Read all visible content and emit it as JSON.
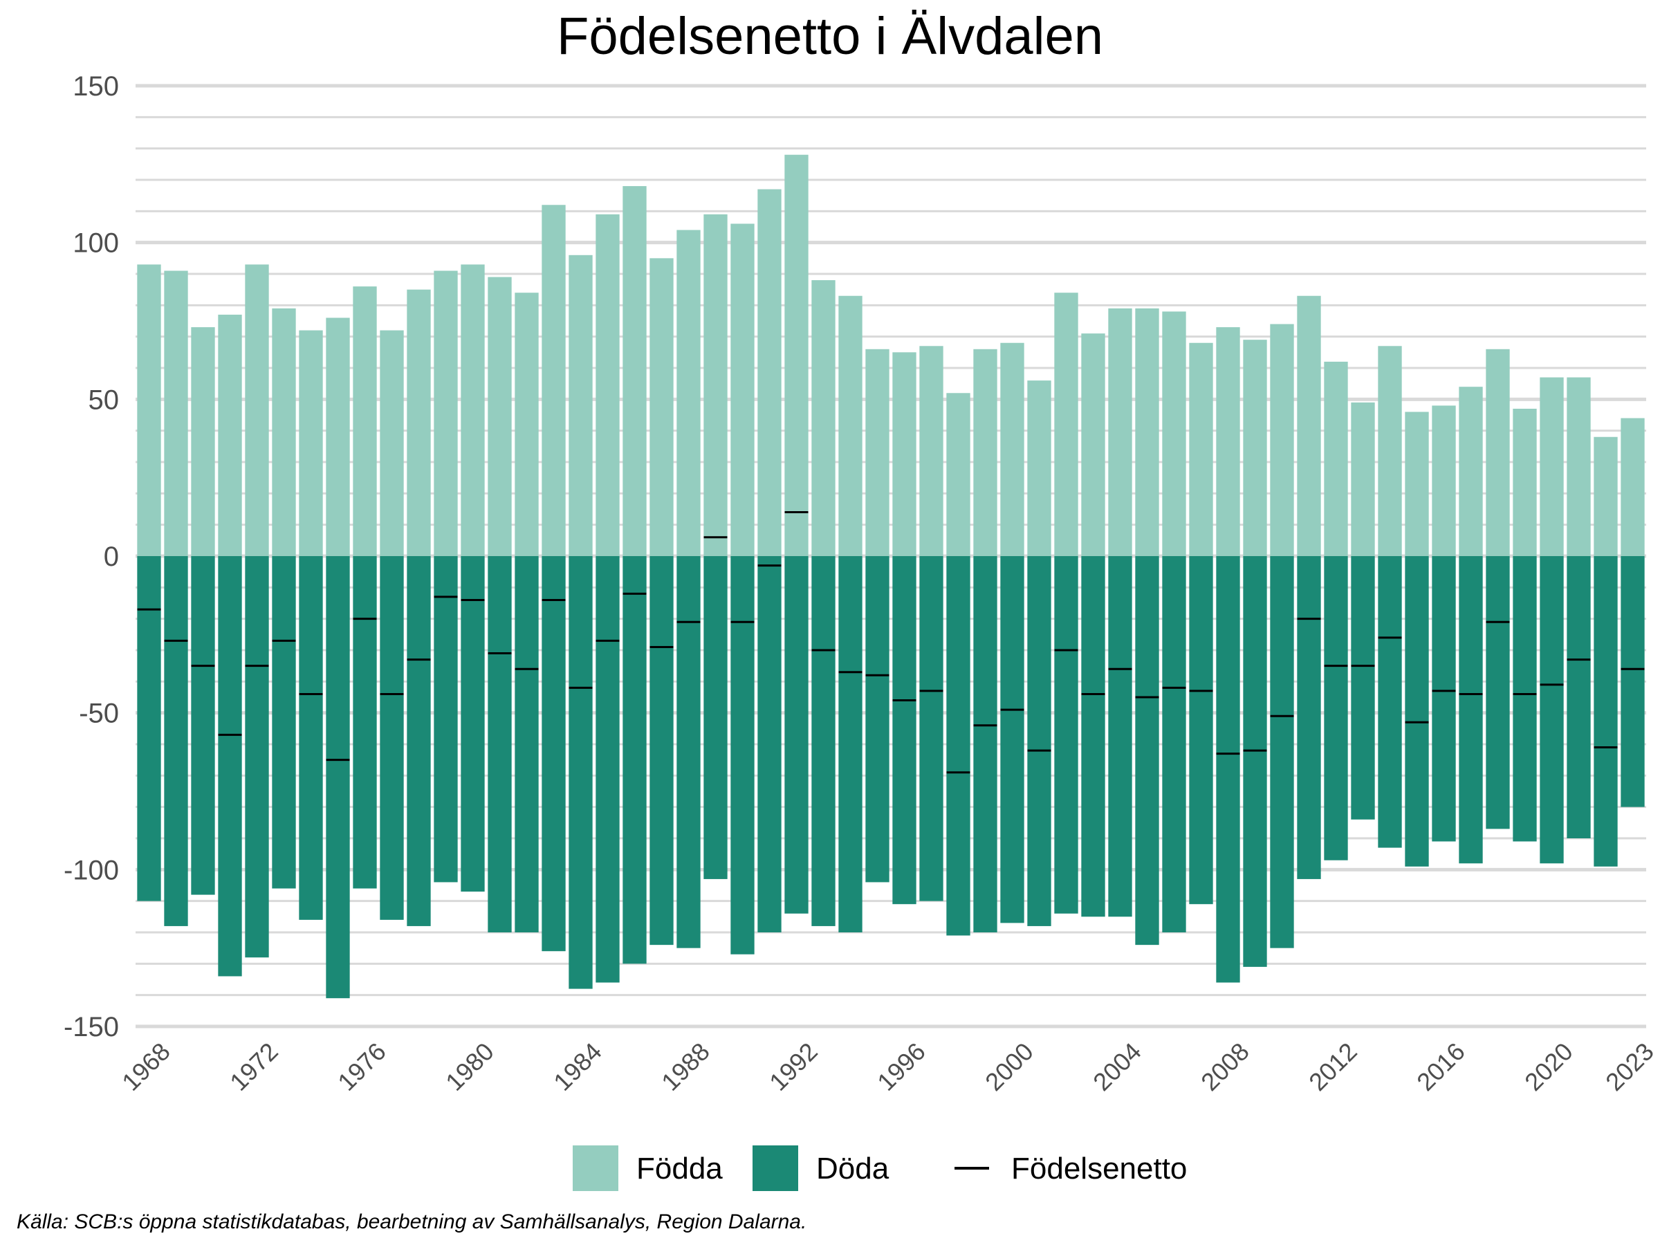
{
  "chart_data": {
    "type": "bar",
    "title": "Födelsenetto i Älvdalen",
    "xlabel": "",
    "ylabel": "",
    "ylim": [
      -150,
      150
    ],
    "y_ticks": [
      "150",
      "100",
      "50",
      "0",
      "-50",
      "-100",
      "-150"
    ],
    "y_tick_values": [
      150,
      100,
      50,
      0,
      -50,
      -100,
      -150
    ],
    "x_ticks": [
      "1968",
      "1972",
      "1976",
      "1980",
      "1984",
      "1988",
      "1992",
      "1996",
      "2000",
      "2004",
      "2008",
      "2012",
      "2016",
      "2020",
      "2023"
    ],
    "x_tick_values": [
      1968,
      1972,
      1976,
      1980,
      1984,
      1988,
      1992,
      1996,
      2000,
      2004,
      2008,
      2012,
      2016,
      2020,
      2023
    ],
    "grid": true,
    "legend_position": "bottom",
    "years": [
      1968,
      1969,
      1970,
      1971,
      1972,
      1973,
      1974,
      1975,
      1976,
      1977,
      1978,
      1979,
      1980,
      1981,
      1982,
      1983,
      1984,
      1985,
      1986,
      1987,
      1988,
      1989,
      1990,
      1991,
      1992,
      1993,
      1994,
      1995,
      1996,
      1997,
      1998,
      1999,
      2000,
      2001,
      2002,
      2003,
      2004,
      2005,
      2006,
      2007,
      2008,
      2009,
      2010,
      2011,
      2012,
      2013,
      2014,
      2015,
      2016,
      2017,
      2018,
      2019,
      2020,
      2021,
      2022,
      2023
    ],
    "series": [
      {
        "name": "Födda",
        "color": "#94cdbf",
        "values": [
          93,
          91,
          73,
          77,
          93,
          79,
          72,
          76,
          86,
          72,
          85,
          91,
          93,
          89,
          84,
          112,
          96,
          109,
          118,
          95,
          104,
          109,
          106,
          117,
          128,
          88,
          83,
          66,
          65,
          67,
          52,
          66,
          68,
          56,
          84,
          71,
          79,
          79,
          78,
          68,
          73,
          69,
          74,
          83,
          62,
          49,
          67,
          46,
          48,
          54,
          66,
          47,
          57,
          57,
          38,
          44
        ]
      },
      {
        "name": "Döda",
        "color": "#1b8975",
        "values": [
          -110,
          -118,
          -108,
          -134,
          -128,
          -106,
          -116,
          -141,
          -106,
          -116,
          -118,
          -104,
          -107,
          -120,
          -120,
          -126,
          -138,
          -136,
          -130,
          -124,
          -125,
          -103,
          -127,
          -120,
          -114,
          -118,
          -120,
          -104,
          -111,
          -110,
          -121,
          -120,
          -117,
          -118,
          -114,
          -115,
          -115,
          -124,
          -120,
          -111,
          -136,
          -131,
          -125,
          -103,
          -97,
          -84,
          -93,
          -99,
          -91,
          -98,
          -87,
          -91,
          -98,
          -90,
          -99,
          -80
        ]
      },
      {
        "name": "Födelsenetto",
        "color": "#000000",
        "values": [
          -17,
          -27,
          -35,
          -57,
          -35,
          -27,
          -44,
          -65,
          -20,
          -44,
          -33,
          -13,
          -14,
          -31,
          -36,
          -14,
          -42,
          -27,
          -12,
          -29,
          -21,
          6,
          -21,
          -3,
          14,
          -30,
          -37,
          -38,
          -46,
          -43,
          -69,
          -54,
          -49,
          -62,
          -30,
          -44,
          -36,
          -45,
          -42,
          -43,
          -63,
          -62,
          -51,
          -20,
          -35,
          -35,
          -26,
          -53,
          -43,
          -44,
          -21,
          -44,
          -41,
          -33,
          -61,
          -36
        ]
      }
    ]
  },
  "legend": {
    "items": [
      "Födda",
      "Döda",
      "Födelsenetto"
    ]
  },
  "source": "Källa: SCB:s öppna statistikdatabas, bearbetning av Samhällsanalys, Region Dalarna."
}
